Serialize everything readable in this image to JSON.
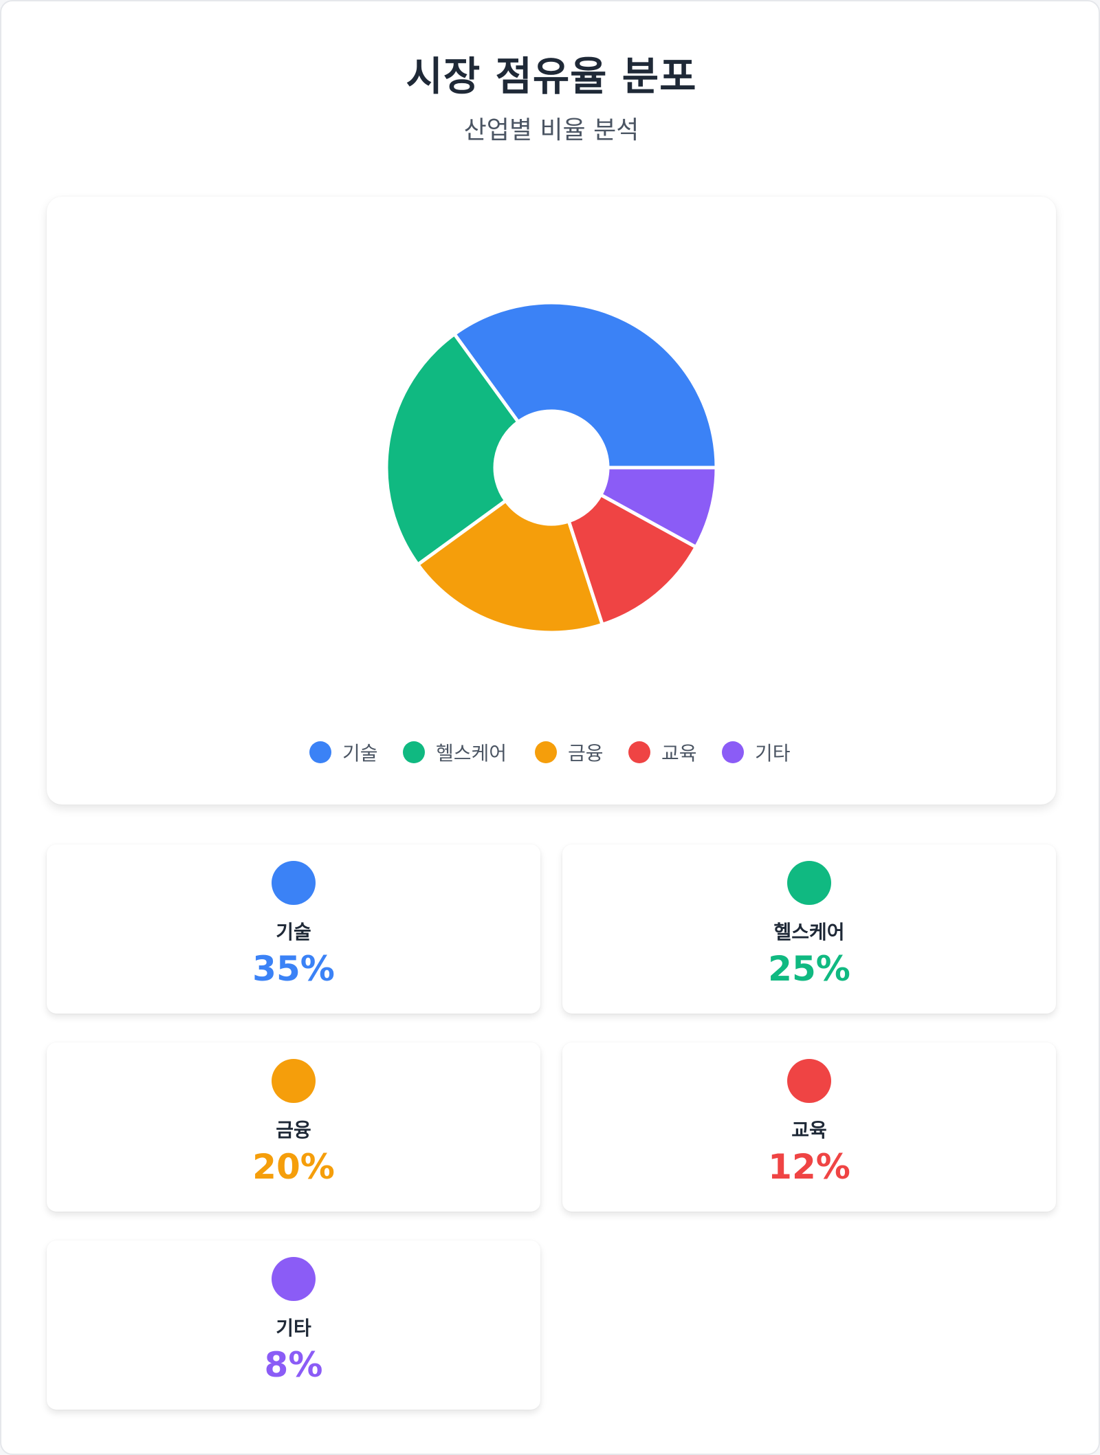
{
  "header": {
    "title": "시장 점유율 분포",
    "subtitle": "산업별 비율 분석"
  },
  "chart_data": {
    "type": "pie",
    "title": "시장 점유율 분포",
    "subtitle": "산업별 비율 분석",
    "donut": true,
    "categories": [
      "기술",
      "헬스케어",
      "금융",
      "교육",
      "기타"
    ],
    "values": [
      35,
      25,
      20,
      12,
      8
    ],
    "colors": [
      "#3b82f6",
      "#10b981",
      "#f59e0b",
      "#ef4444",
      "#8b5cf6"
    ],
    "legend_position": "bottom"
  },
  "stats": [
    {
      "label": "기술",
      "value": "35%",
      "color": "#3b82f6"
    },
    {
      "label": "헬스케어",
      "value": "25%",
      "color": "#10b981"
    },
    {
      "label": "금융",
      "value": "20%",
      "color": "#f59e0b"
    },
    {
      "label": "교육",
      "value": "12%",
      "color": "#ef4444"
    },
    {
      "label": "기타",
      "value": "8%",
      "color": "#8b5cf6"
    }
  ]
}
